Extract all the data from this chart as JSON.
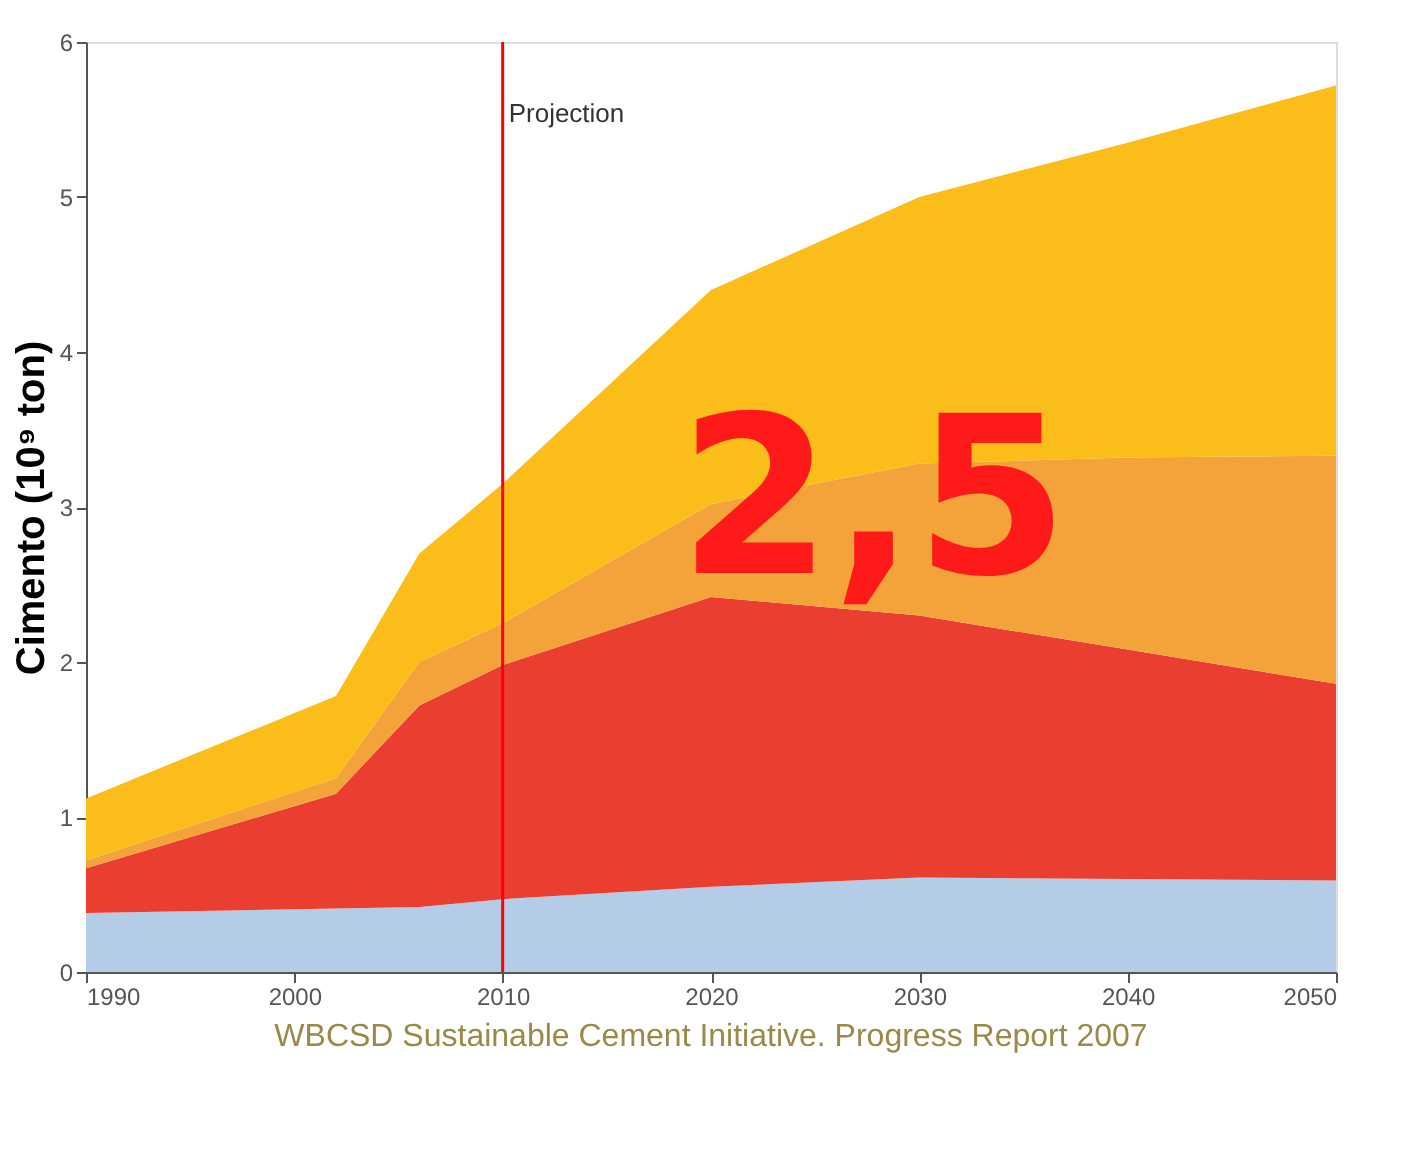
{
  "chart_data": {
    "type": "area",
    "stacked": true,
    "ylabel": "Cimento (10⁹ ton)",
    "x": [
      1990,
      2002,
      2006,
      2010,
      2020,
      2030,
      2040,
      2050
    ],
    "series": [
      {
        "color": "#b4cce8",
        "values": [
          0.38,
          0.41,
          0.42,
          0.47,
          0.55,
          0.61,
          0.6,
          0.59
        ]
      },
      {
        "color": "#e93e30",
        "values": [
          0.29,
          0.74,
          1.3,
          1.51,
          1.87,
          1.69,
          1.48,
          1.27
        ]
      },
      {
        "color": "#f4a23a",
        "values": [
          0.05,
          0.1,
          0.28,
          0.27,
          0.6,
          0.98,
          1.24,
          1.47
        ]
      },
      {
        "color": "#fbbd1a",
        "values": [
          0.4,
          0.53,
          0.7,
          0.9,
          1.38,
          1.72,
          2.03,
          2.39
        ]
      }
    ],
    "xlim": [
      1990,
      2050
    ],
    "xticks": [
      1990,
      2000,
      2010,
      2020,
      2030,
      2040,
      2050
    ],
    "ylim": [
      0,
      6
    ],
    "yticks": [
      0,
      1,
      2,
      3,
      4,
      5,
      6
    ],
    "ref_lines": [
      {
        "axis": "x",
        "value": 2010,
        "label": "Projection",
        "color": "#ff0000"
      }
    ],
    "annotations": [
      "2,5",
      "WBCSD  Sustainable Cement Initiative. Progress Report 2007"
    ],
    "grid": false,
    "legend": false
  }
}
